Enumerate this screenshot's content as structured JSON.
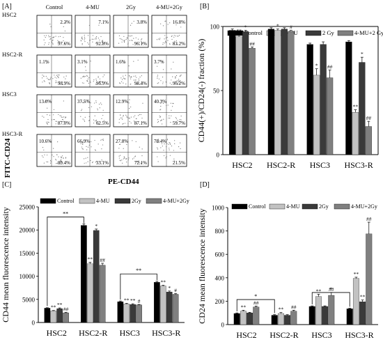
{
  "panel_A": {
    "label": "[A]",
    "col_headers": [
      "Control",
      "4-MU",
      "2Gy",
      "4-MU+2Gy"
    ],
    "rows": [
      {
        "name": "HSC2",
        "cells": [
          {
            "ul": "",
            "ur": "2.3%",
            "lr": "97.6%"
          },
          {
            "ul": "",
            "ur": "7.1%",
            "lr": "92.8%"
          },
          {
            "ul": "",
            "ur": "3.8%",
            "lr": "96.1%"
          },
          {
            "ul": "",
            "ur": "16.8%",
            "lr": "83.2%"
          }
        ]
      },
      {
        "name": "HSC2-R",
        "cells": [
          {
            "ul": "1.1%",
            "ur": "",
            "lr": "98.9%"
          },
          {
            "ul": "3.1%",
            "ur": "",
            "lr": "96.9%"
          },
          {
            "ul": "1.6%",
            "ur": "",
            "lr": "98.4%"
          },
          {
            "ul": "3.7%",
            "ur": "",
            "lr": "96.2%"
          }
        ]
      },
      {
        "name": "HSC3",
        "cells": [
          {
            "ul": "13.0%",
            "ur": "",
            "lr": "87.0%"
          },
          {
            "ul": "37.5%",
            "ur": "",
            "lr": "62.5%"
          },
          {
            "ul": "12.9%",
            "ur": "",
            "lr": "87.1%"
          },
          {
            "ul": "40.3%",
            "ur": "",
            "lr": "59.7%"
          }
        ]
      },
      {
        "name": "HSC3-R",
        "cells": [
          {
            "ul": "10.6%",
            "ur": "",
            "lr": "89.4%"
          },
          {
            "ul": "66.9%",
            "ur": "",
            "lr": "33.1%"
          },
          {
            "ul": "27.8%",
            "ur": "",
            "lr": "72.1%"
          },
          {
            "ul": "78.4%",
            "ur": "",
            "lr": "21.5%"
          }
        ]
      }
    ],
    "ylabel": "FITC-CD24",
    "xlabel": "PE-CD44"
  },
  "colors": {
    "s0": "#000000",
    "s1": "#c2c2c2",
    "s2": "#3a3a3a",
    "s3": "#808080"
  },
  "chart_data": [
    {
      "panel": "[B]",
      "type": "bar",
      "categories": [
        "HSC2",
        "HSC2-R",
        "HSC3",
        "HSC3-R"
      ],
      "series": [
        {
          "name": "Control",
          "values": [
            97,
            98,
            86,
            88
          ],
          "err": [
            1,
            1,
            1,
            1
          ]
        },
        {
          "name": "4-MU",
          "values": [
            92,
            97,
            62,
            33
          ],
          "err": [
            2,
            1,
            5,
            2
          ]
        },
        {
          "name": "2 Gy",
          "values": [
            96,
            98,
            86,
            72
          ],
          "err": [
            1,
            1,
            2,
            4
          ]
        },
        {
          "name": "4-MU+2 Gy",
          "values": [
            83,
            96,
            60,
            22
          ],
          "err": [
            1,
            1,
            6,
            4
          ]
        }
      ],
      "annotations": [
        {
          "cat": 0,
          "s": 1,
          "text": "**"
        },
        {
          "cat": 0,
          "s": 2,
          "text": "*"
        },
        {
          "cat": 0,
          "s": 3,
          "text": "##"
        },
        {
          "cat": 1,
          "s": 1,
          "text": "*"
        },
        {
          "cat": 1,
          "s": 3,
          "text": "#"
        },
        {
          "cat": 2,
          "s": 1,
          "text": "*"
        },
        {
          "cat": 2,
          "s": 3,
          "text": "##"
        },
        {
          "cat": 3,
          "s": 1,
          "text": "**"
        },
        {
          "cat": 3,
          "s": 2,
          "text": "*"
        },
        {
          "cat": 3,
          "s": 3,
          "text": "##"
        }
      ],
      "ylabel": "CD44(+)/CD24(-) fraction (%)",
      "ylim": [
        0,
        100
      ],
      "yticks": [
        0,
        50,
        100
      ]
    },
    {
      "panel": "[C]",
      "type": "bar",
      "categories": [
        "HSC2",
        "HSC2-R",
        "HSC3",
        "HSC3-R"
      ],
      "series": [
        {
          "name": "Control",
          "values": [
            3100,
            21000,
            4500,
            8700
          ],
          "err": [
            100,
            300,
            150,
            200
          ]
        },
        {
          "name": "4-MU",
          "values": [
            2500,
            12700,
            4000,
            7900
          ],
          "err": [
            100,
            300,
            150,
            150
          ]
        },
        {
          "name": "2Gy",
          "values": [
            3000,
            19900,
            3900,
            6600
          ],
          "err": [
            150,
            300,
            150,
            200
          ]
        },
        {
          "name": "4-MU+2Gy",
          "values": [
            2100,
            12400,
            3800,
            6100
          ],
          "err": [
            100,
            400,
            100,
            150
          ]
        }
      ],
      "annotations": [
        {
          "cat": 0,
          "s": 1,
          "text": "**"
        },
        {
          "cat": 0,
          "s": 2,
          "text": "**"
        },
        {
          "cat": 0,
          "s": 3,
          "text": "##"
        },
        {
          "cat": 1,
          "s": 1,
          "text": "**"
        },
        {
          "cat": 1,
          "s": 2,
          "text": "*"
        },
        {
          "cat": 1,
          "s": 3,
          "text": "##"
        },
        {
          "cat": 2,
          "s": 1,
          "text": "**"
        },
        {
          "cat": 2,
          "s": 2,
          "text": "**"
        },
        {
          "cat": 2,
          "s": 3,
          "text": "#"
        },
        {
          "cat": 3,
          "s": 1,
          "text": "**"
        },
        {
          "cat": 3,
          "s": 2,
          "text": "*"
        },
        {
          "cat": 3,
          "s": 3,
          "text": "#"
        }
      ],
      "brackets": [
        {
          "from": 0,
          "to": 1,
          "text": "**"
        },
        {
          "from": 2,
          "to": 3,
          "text": "**"
        }
      ],
      "ylabel": "CD44 mean fluorescence intensity",
      "ylim": [
        0,
        25000
      ],
      "yticks": [
        0,
        5000,
        10000,
        15000,
        20000,
        25000
      ]
    },
    {
      "panel": "[D]",
      "type": "bar",
      "categories": [
        "HSC2",
        "HSC2-R",
        "HSC3",
        "HSC3-R"
      ],
      "series": [
        {
          "name": "Control",
          "values": [
            95,
            80,
            155,
            135
          ],
          "err": [
            5,
            5,
            5,
            5
          ]
        },
        {
          "name": "4-MU",
          "values": [
            115,
            95,
            240,
            395
          ],
          "err": [
            8,
            8,
            20,
            10
          ]
        },
        {
          "name": "2Gy",
          "values": [
            100,
            80,
            155,
            195
          ],
          "err": [
            5,
            5,
            5,
            15
          ]
        },
        {
          "name": "4-MU+2Gy",
          "values": [
            150,
            115,
            250,
            775
          ],
          "err": [
            8,
            8,
            25,
            100
          ]
        }
      ],
      "annotations": [
        {
          "cat": 0,
          "s": 1,
          "text": "**"
        },
        {
          "cat": 0,
          "s": 3,
          "text": "##"
        },
        {
          "cat": 1,
          "s": 1,
          "text": "**"
        },
        {
          "cat": 1,
          "s": 3,
          "text": "##"
        },
        {
          "cat": 2,
          "s": 1,
          "text": "**"
        },
        {
          "cat": 2,
          "s": 3,
          "text": "##"
        },
        {
          "cat": 3,
          "s": 1,
          "text": "**"
        },
        {
          "cat": 3,
          "s": 2,
          "text": "**"
        },
        {
          "cat": 3,
          "s": 3,
          "text": "##"
        }
      ],
      "brackets": [
        {
          "from": 0,
          "to": 1,
          "text": "*"
        },
        {
          "from": 2,
          "to": 3,
          "text": "*"
        }
      ],
      "ylabel": "CD24 mean fluorescence intensity",
      "ylim": [
        0,
        1000
      ],
      "yticks": [
        0,
        200,
        400,
        600,
        800,
        1000
      ]
    }
  ]
}
